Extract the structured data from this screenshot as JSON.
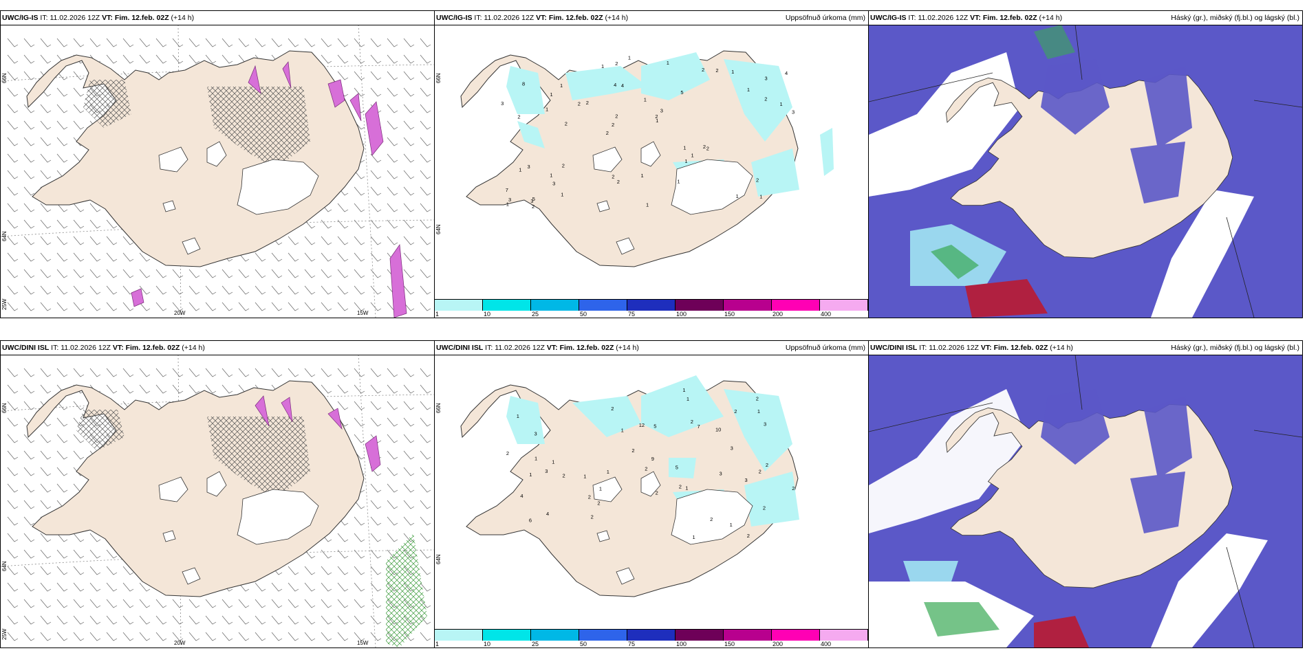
{
  "panels": {
    "top_left": {
      "model": "UWC/IG-IS",
      "it_label": "IT:",
      "it_value": "11.02.2026 12Z",
      "vt_label": "VT:",
      "vt_value": "Fim. 12.feb. 02Z",
      "lead": "(+14 h)",
      "right_title": "",
      "lat_labels": [
        "66N",
        "64N",
        "25W"
      ],
      "lon_labels": [
        "20W",
        "15W"
      ]
    },
    "top_mid": {
      "model": "UWC/IG-IS",
      "it_label": "IT:",
      "it_value": "11.02.2026 12Z",
      "vt_label": "VT:",
      "vt_value": "Fim. 12.feb. 02Z",
      "lead": "(+14 h)",
      "right_title": "Uppsöfnuð úrkoma (mm)",
      "lat_labels": [
        "66N",
        "64N"
      ]
    },
    "top_right": {
      "model": "UWC/IG-IS",
      "it_label": "IT:",
      "it_value": "11.02.2026 12Z",
      "vt_label": "VT:",
      "vt_value": "Fim. 12.feb. 02Z",
      "lead": "(+14 h)",
      "right_title": "Háský (gr.), miðský (fj.bl.) og lágský (bl.)"
    },
    "bottom_left": {
      "model": "UWC/DINI ISL",
      "it_label": "IT:",
      "it_value": "11.02.2026 12Z",
      "vt_label": "VT:",
      "vt_value": "Fim. 12.feb. 02Z",
      "lead": "(+14 h)",
      "right_title": "",
      "lat_labels": [
        "66N",
        "64N",
        "25W"
      ],
      "lon_labels": [
        "20W",
        "15W"
      ]
    },
    "bottom_mid": {
      "model": "UWC/DINI ISL",
      "it_label": "IT:",
      "it_value": "11.02.2026 12Z",
      "vt_label": "VT:",
      "vt_value": "Fim. 12.feb. 02Z",
      "lead": "(+14 h)",
      "right_title": "Uppsöfnuð úrkoma (mm)",
      "lat_labels": [
        "66N",
        "64N"
      ]
    },
    "bottom_right": {
      "model": "UWC/DINI ISL",
      "it_label": "IT:",
      "it_value": "11.02.2026 12Z",
      "vt_label": "VT:",
      "vt_value": "Fim. 12.feb. 02Z",
      "lead": "(+14 h)",
      "right_title": "Háský (gr.), miðský (fj.bl.) og lágský (bl.)"
    }
  },
  "precip_colorbar": {
    "ticks": [
      "1",
      "10",
      "25",
      "50",
      "75",
      "100",
      "150",
      "200",
      "400"
    ],
    "colors": [
      "#b8f5f5",
      "#00e5e8",
      "#00b8e6",
      "#2e64ea",
      "#1e2ebd",
      "#6e0058",
      "#b8008e",
      "#ff00b4",
      "#f5aaf0"
    ]
  },
  "precip_values_top": [
    "1",
    "2",
    "3",
    "2",
    "5",
    "5",
    "4",
    "1",
    "3",
    "2",
    "7",
    "3",
    "4",
    "3",
    "2",
    "8",
    "2",
    "3",
    "1",
    "2",
    "2",
    "2",
    "2",
    "1",
    "2",
    "2",
    "1",
    "2",
    "2",
    "1",
    "2",
    "1",
    "1",
    "1",
    "1",
    "2",
    "3",
    "2",
    "1",
    "1",
    "1",
    "4",
    "1",
    "1",
    "1",
    "2",
    "1",
    "1",
    "1",
    "1",
    "2",
    "3",
    "1",
    "2",
    "3",
    "1",
    "1"
  ],
  "precip_values_bottom": [
    "2",
    "3",
    "2",
    "1",
    "2",
    "3",
    "4",
    "1",
    "10",
    "12",
    "7",
    "1",
    "2",
    "2",
    "5",
    "4",
    "3",
    "9",
    "2",
    "6",
    "2",
    "5",
    "3",
    "2",
    "2",
    "1",
    "2",
    "2",
    "2",
    "1",
    "1",
    "1",
    "2",
    "2",
    "1",
    "3",
    "2",
    "2",
    "2",
    "1",
    "1",
    "2",
    "2",
    "1",
    "1",
    "1",
    "3",
    "1"
  ],
  "colors": {
    "land": "#f4e6d8",
    "sea": "#ffffff",
    "cloud_mid": "#5b58c8",
    "cloud_low": "#9ad7ee",
    "cloud_high": "#3aaa55",
    "snow_purple": "#d76fd8"
  }
}
